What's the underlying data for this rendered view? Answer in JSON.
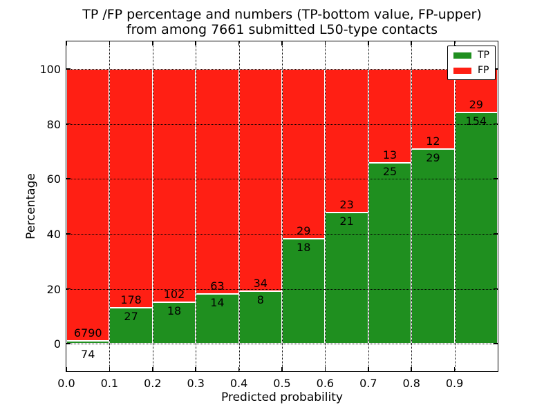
{
  "chart_data": {
    "type": "bar",
    "stacked": true,
    "title_line1": "TP /FP percentage and numbers (TP-bottom value, FP-upper)",
    "title_line2": "from among 7661 submitted L50-type contacts",
    "total_contacts": 7661,
    "xlabel": "Predicted probability",
    "ylabel": "Percentage",
    "xlim": [
      0.0,
      1.0
    ],
    "ylim": [
      -10,
      110
    ],
    "xticks": [
      "0.0",
      "0.1",
      "0.2",
      "0.3",
      "0.4",
      "0.5",
      "0.6",
      "0.7",
      "0.8",
      "0.9"
    ],
    "yticks": [
      "0",
      "20",
      "40",
      "60",
      "80",
      "100"
    ],
    "grid": "dotted, both axes",
    "legend": {
      "position": "upper right",
      "entries": [
        {
          "label": "TP",
          "color": "#1f8f1f"
        },
        {
          "label": "FP",
          "color": "#ff1f14"
        }
      ]
    },
    "colors": {
      "tp": "#1f8f1f",
      "fp": "#ff1f14",
      "grid": "#000000",
      "background": "#ffffff"
    },
    "bins": [
      {
        "x0": 0.0,
        "x1": 0.1,
        "tp": 74,
        "fp": 6790,
        "tp_pct": 1.08
      },
      {
        "x0": 0.1,
        "x1": 0.2,
        "tp": 27,
        "fp": 178,
        "tp_pct": 13.17
      },
      {
        "x0": 0.2,
        "x1": 0.3,
        "tp": 18,
        "fp": 102,
        "tp_pct": 15.0
      },
      {
        "x0": 0.3,
        "x1": 0.4,
        "tp": 14,
        "fp": 63,
        "tp_pct": 18.18
      },
      {
        "x0": 0.4,
        "x1": 0.5,
        "tp": 8,
        "fp": 34,
        "tp_pct": 19.05
      },
      {
        "x0": 0.5,
        "x1": 0.6,
        "tp": 18,
        "fp": 29,
        "tp_pct": 38.3
      },
      {
        "x0": 0.6,
        "x1": 0.7,
        "tp": 21,
        "fp": 23,
        "tp_pct": 47.73
      },
      {
        "x0": 0.7,
        "x1": 0.8,
        "tp": 25,
        "fp": 13,
        "tp_pct": 65.79
      },
      {
        "x0": 0.8,
        "x1": 0.9,
        "tp": 29,
        "fp": 12,
        "tp_pct": 70.73
      },
      {
        "x0": 0.9,
        "x1": 1.0,
        "tp": 154,
        "fp": 29,
        "tp_pct": 84.15
      }
    ]
  }
}
